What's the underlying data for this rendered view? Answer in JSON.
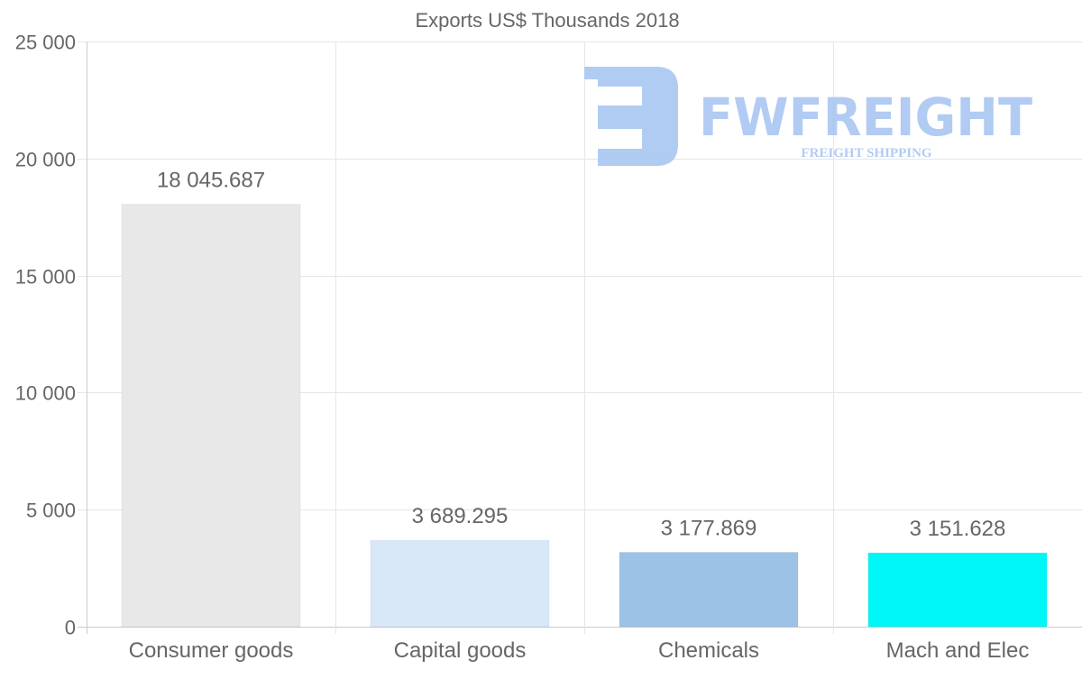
{
  "chart_data": {
    "type": "bar",
    "title": "Exports US$ Thousands 2018",
    "xlabel": "",
    "ylabel": "",
    "categories": [
      "Consumer goods",
      "Capital goods",
      "Chemicals",
      "Mach and Elec"
    ],
    "values": [
      18045.687,
      3689.295,
      3177.869,
      3151.628
    ],
    "value_labels": [
      "18 045.687",
      "3 689.295",
      "3 177.869",
      "3 151.628"
    ],
    "colors": [
      "#e8e8e8",
      "#d9e8f9",
      "#9cc3e6",
      "#00f7f7"
    ],
    "ylim": [
      0,
      25000
    ],
    "yticks": [
      0,
      5000,
      10000,
      15000,
      20000,
      25000
    ],
    "ytick_labels": [
      "0",
      "5 000",
      "10 000",
      "15 000",
      "20 000",
      "25 000"
    ],
    "grid": true,
    "legend": "none"
  },
  "watermark": {
    "brand": "FWFREIGHT",
    "tagline": "FREIGHT SHIPPING",
    "color": "#a9c6f2"
  }
}
